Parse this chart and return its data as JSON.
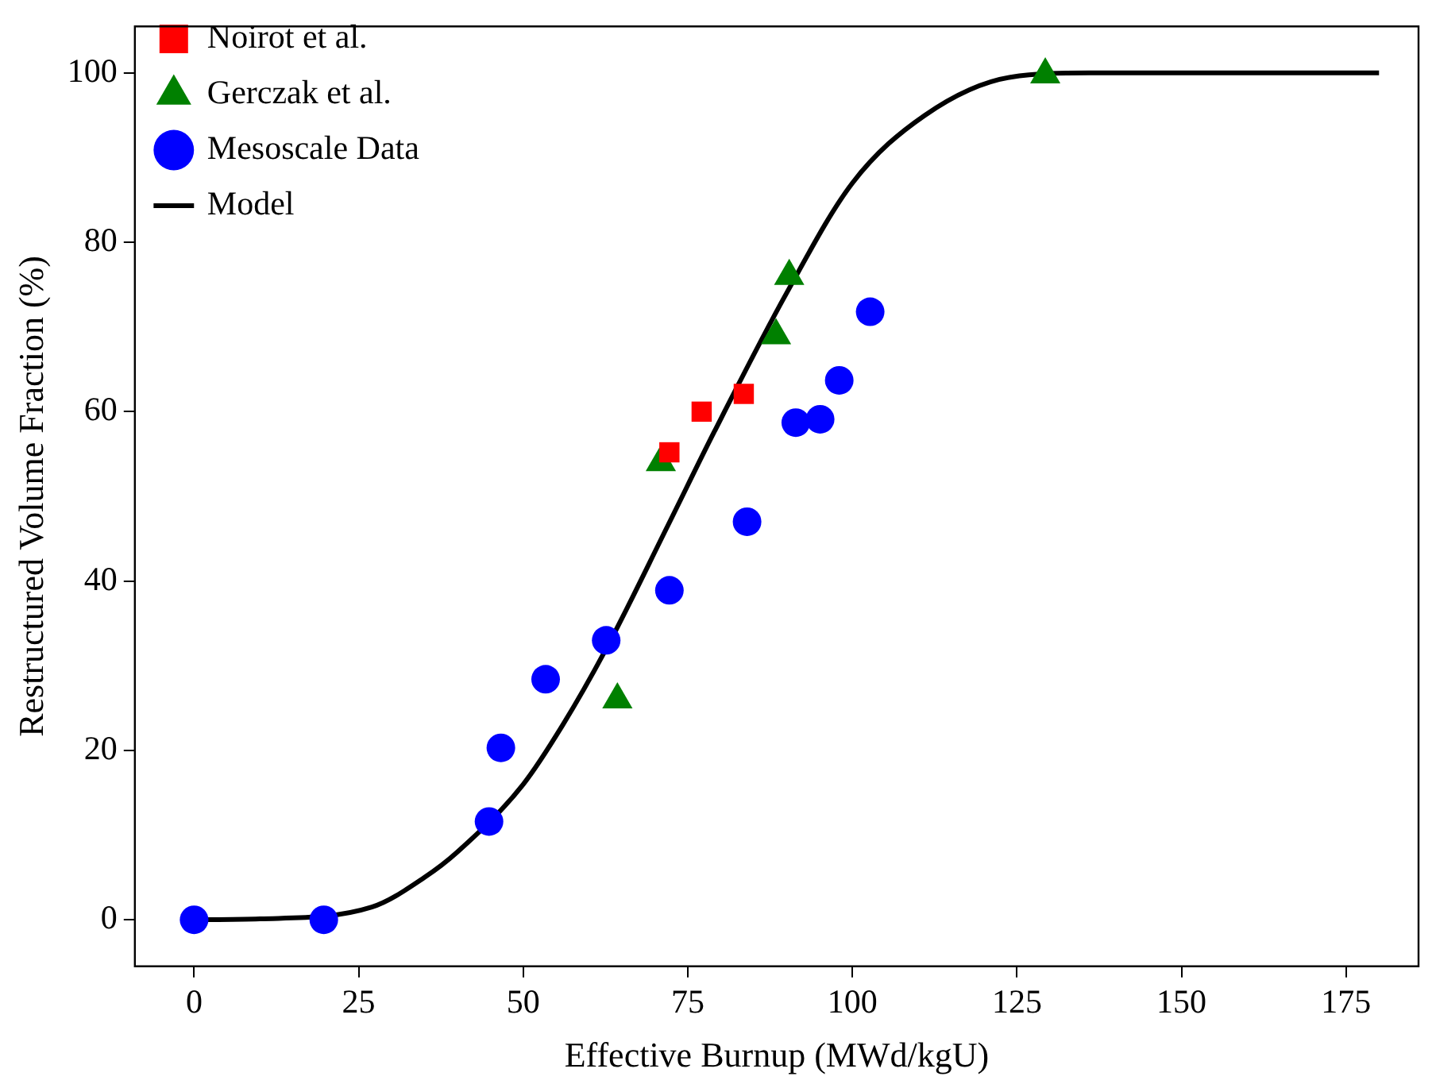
{
  "chart_data": {
    "type": "scatter",
    "xlabel": "Effective Burnup (MWd/kgU)",
    "ylabel": "Restructured Volume Fraction (%)",
    "xlim": [
      -9,
      186
    ],
    "ylim": [
      -5.5,
      105.5
    ],
    "xticks": [
      0,
      25,
      50,
      75,
      100,
      125,
      150,
      175
    ],
    "yticks": [
      0,
      20,
      40,
      60,
      80,
      100
    ],
    "legend": "top left",
    "series": [
      {
        "name": "Noirot et al.",
        "type": "scatter",
        "marker": "square",
        "color": "#ff0000",
        "x": [
          72.2,
          77.1,
          83.5
        ],
        "values": [
          55.2,
          60.0,
          62.1
        ]
      },
      {
        "name": "Gerczak et al.",
        "type": "scatter",
        "marker": "triangle",
        "color": "#008000",
        "x": [
          64.3,
          70.9,
          88.4,
          90.4,
          129.3
        ],
        "values": [
          26,
          54,
          69,
          76,
          99.8
        ]
      },
      {
        "name": "Mesoscale Data",
        "type": "scatter",
        "marker": "circle",
        "color": "#0000ff",
        "x": [
          0,
          19.7,
          44.8,
          46.6,
          53.4,
          62.6,
          72.2,
          84.0,
          91.4,
          95.1,
          98.0,
          102.7
        ],
        "values": [
          0,
          0,
          11.6,
          20.3,
          28.4,
          33,
          38.9,
          47,
          58.7,
          59.1,
          63.7,
          71.8
        ]
      },
      {
        "name": "Model",
        "type": "line",
        "marker": "none",
        "line_style": "solid",
        "color": "#000000",
        "x": [
          0,
          10,
          27,
          35,
          40,
          50,
          56,
          62.6,
          72,
          79,
          90,
          100,
          111,
          124,
          136,
          180
        ],
        "values": [
          0,
          0.1,
          1.5,
          5,
          8,
          16,
          23,
          32,
          46.6,
          57.6,
          74,
          87,
          95,
          99.5,
          100,
          100
        ]
      }
    ]
  }
}
